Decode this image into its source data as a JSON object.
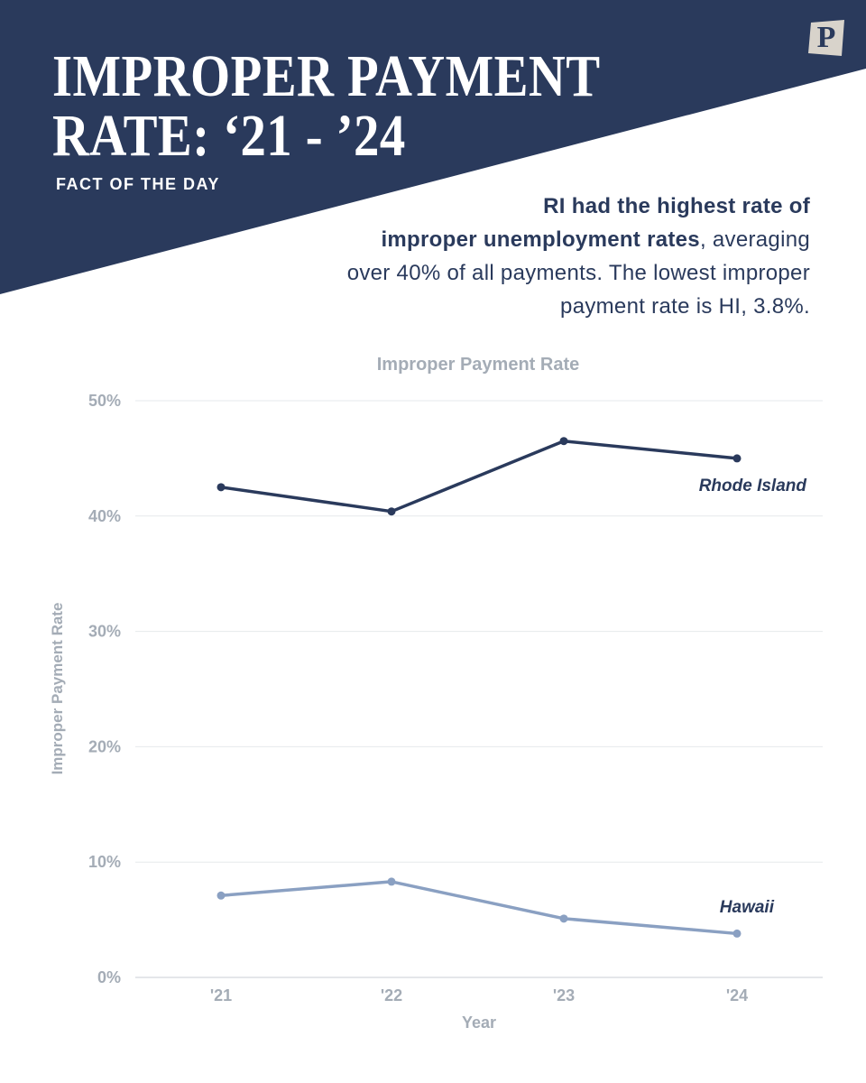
{
  "header": {
    "title_line1": "IMPROPER PAYMENT",
    "title_line2": "RATE: ‘21 - ’24",
    "kicker": "FACT OF THE DAY",
    "logo_letter": "P"
  },
  "summary": {
    "bold_1": "RI had the highest rate of",
    "bold_2": "improper unemployment rates",
    "text_2": ", averaging",
    "text_3": "over 40% of all payments. The lowest improper",
    "text_4": "payment rate is HI, 3.8%."
  },
  "colors": {
    "navy": "#2a3a5c",
    "light_blue": "#8aa0c2",
    "axis_text": "#a4acb6",
    "grid": "#e6e9ec"
  },
  "chart_data": {
    "type": "line",
    "title": "Improper Payment Rate",
    "xlabel": "Year",
    "ylabel": "Improper Payment Rate",
    "categories": [
      "'21",
      "'22",
      "'23",
      "'24"
    ],
    "ylim": [
      0,
      50
    ],
    "yticks": [
      0,
      10,
      20,
      30,
      40,
      50
    ],
    "ytick_labels": [
      "0%",
      "10%",
      "20%",
      "30%",
      "40%",
      "50%"
    ],
    "grid": true,
    "series": [
      {
        "name": "Rhode Island",
        "values": [
          42.5,
          40.4,
          46.5,
          45.0
        ],
        "color": "#2a3a5c"
      },
      {
        "name": "Hawaii",
        "values": [
          7.1,
          8.3,
          5.1,
          3.8
        ],
        "color": "#8aa0c2"
      }
    ]
  }
}
